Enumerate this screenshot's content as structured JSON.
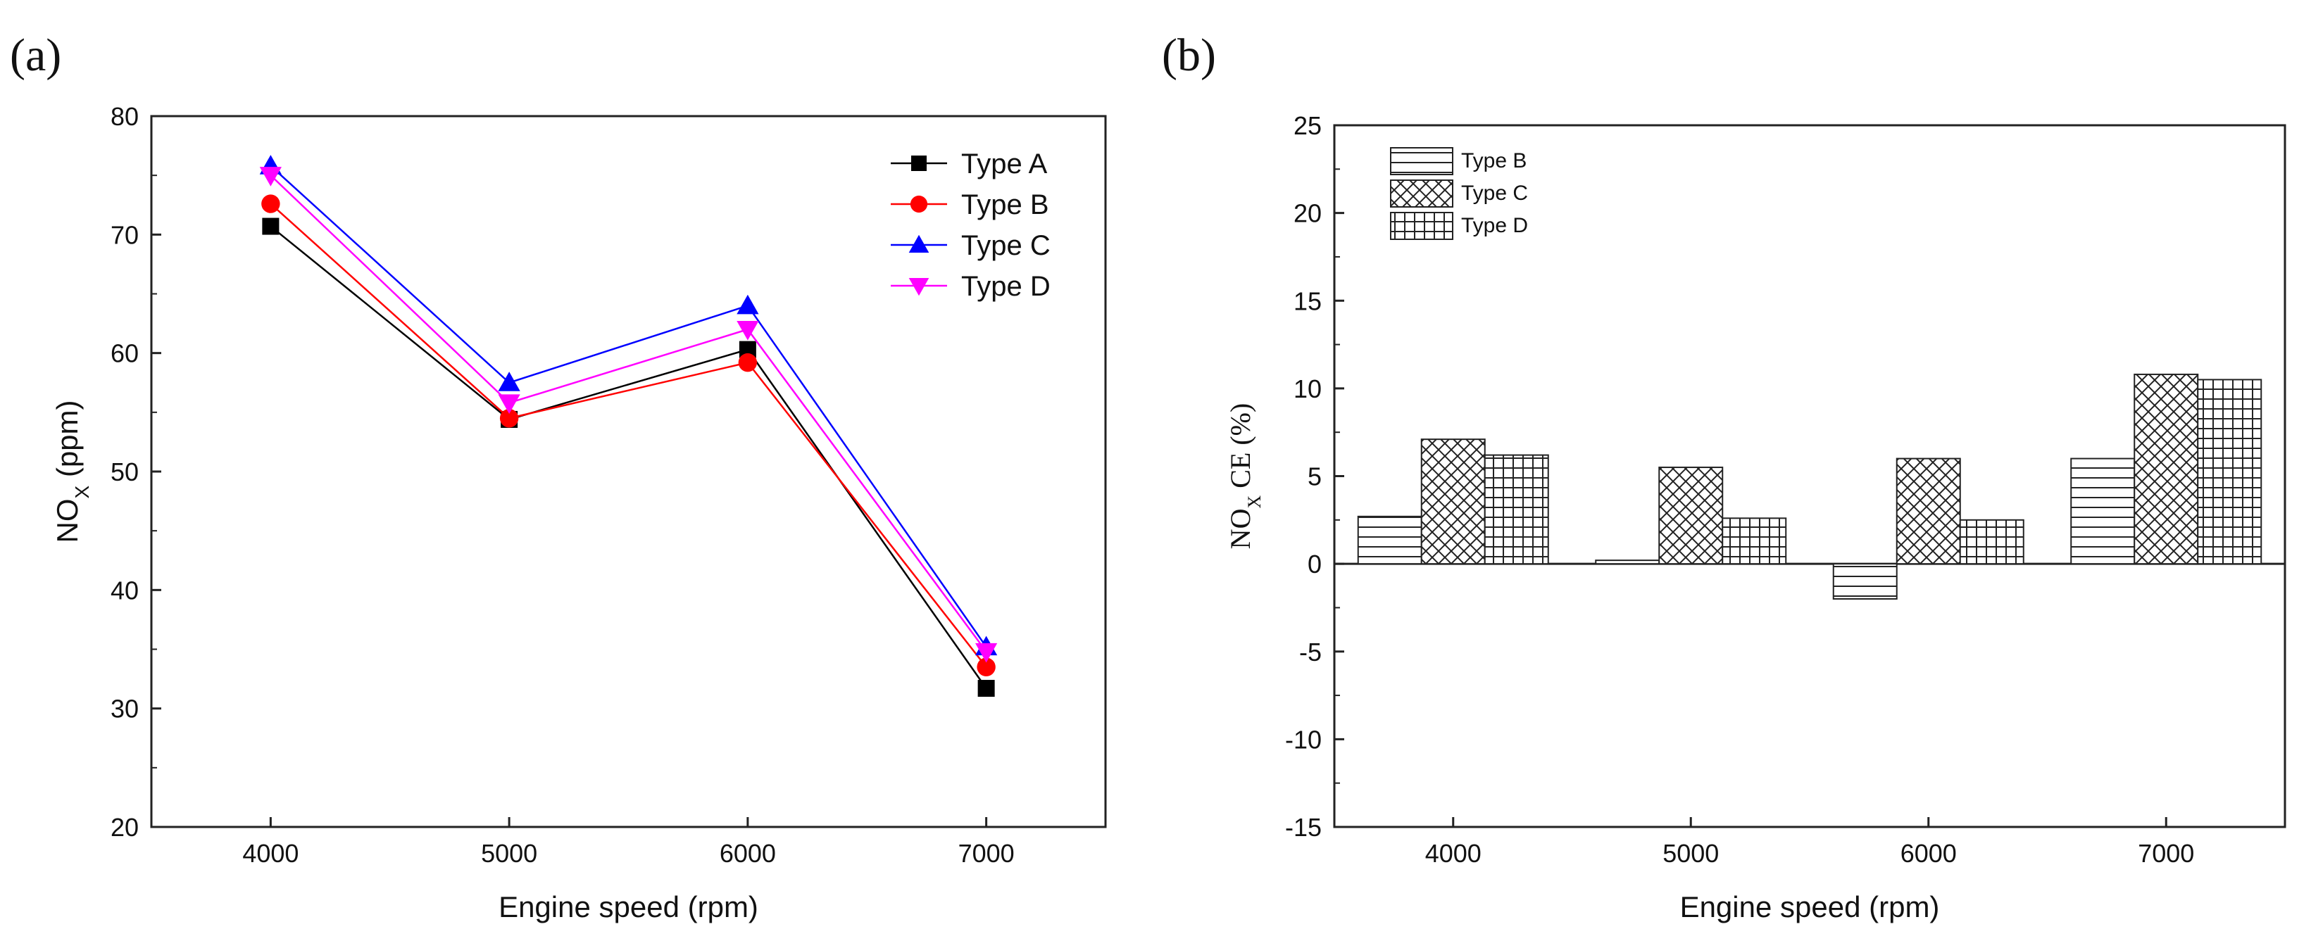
{
  "panels": {
    "a_label": "(a)",
    "b_label": "(b)"
  },
  "chart_data": [
    {
      "type": "line",
      "panel": "(a)",
      "xlabel": "Engine speed (rpm)",
      "ylabel_main": "NO",
      "ylabel_sub": "X",
      "ylabel_rest": " (ppm)",
      "x": [
        4000,
        5000,
        6000,
        7000
      ],
      "x_tick_labels": [
        "4000",
        "5000",
        "6000",
        "7000"
      ],
      "xlim": [
        3500,
        7500
      ],
      "ylim": [
        20,
        80
      ],
      "y_ticks": [
        20,
        30,
        40,
        50,
        60,
        70,
        80
      ],
      "y_tick_labels": [
        "20",
        "30",
        "40",
        "50",
        "60",
        "70",
        "80"
      ],
      "legend_position": "top-right",
      "grid": false,
      "series": [
        {
          "name": "Type A",
          "values": [
            70.7,
            54.4,
            60.3,
            31.7
          ],
          "color": "#000000",
          "marker": "square"
        },
        {
          "name": "Type B",
          "values": [
            72.6,
            54.5,
            59.2,
            33.5
          ],
          "color": "#ff0000",
          "marker": "circle"
        },
        {
          "name": "Type C",
          "values": [
            75.8,
            57.5,
            64.0,
            35.2
          ],
          "color": "#0000ff",
          "marker": "triangle-up"
        },
        {
          "name": "Type D",
          "values": [
            75.0,
            55.8,
            62.0,
            34.8
          ],
          "color": "#ff00ff",
          "marker": "triangle-down"
        }
      ]
    },
    {
      "type": "bar",
      "panel": "(b)",
      "xlabel": "Engine speed (rpm)",
      "ylabel_main": "NO",
      "ylabel_sub": "X",
      "ylabel_rest": " CE (%)",
      "categories": [
        "4000",
        "5000",
        "6000",
        "7000"
      ],
      "ylim": [
        -15,
        25
      ],
      "y_ticks": [
        -15,
        -10,
        -5,
        0,
        5,
        10,
        15,
        20,
        25
      ],
      "y_tick_labels": [
        "-15",
        "-10",
        "-5",
        "0",
        "5",
        "10",
        "15",
        "20",
        "25"
      ],
      "legend_position": "top-left",
      "grid": false,
      "series": [
        {
          "name": "Type B",
          "values": [
            2.7,
            0.2,
            -2.0,
            6.0
          ],
          "pattern": "horizontal-lines"
        },
        {
          "name": "Type C",
          "values": [
            7.1,
            5.5,
            6.0,
            10.8
          ],
          "pattern": "crosshatch"
        },
        {
          "name": "Type D",
          "values": [
            6.2,
            2.6,
            2.5,
            10.5
          ],
          "pattern": "grid"
        }
      ]
    }
  ]
}
